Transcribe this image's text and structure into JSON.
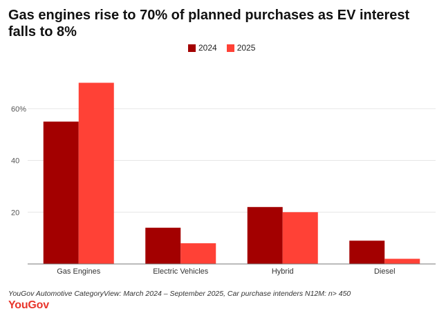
{
  "chart_data": {
    "type": "bar",
    "title": "Gas engines rise to 70% of planned purchases as EV interest falls to 8%",
    "categories": [
      "Gas Engines",
      "Electric Vehicles",
      "Hybrid",
      "Diesel"
    ],
    "series": [
      {
        "name": "2024",
        "color": "#a30000",
        "values": [
          55,
          14,
          22,
          9
        ]
      },
      {
        "name": "2025",
        "color": "#ff4136",
        "values": [
          70,
          8,
          20,
          2
        ]
      }
    ],
    "yticks": [
      20,
      40,
      60
    ],
    "ytick_labels": [
      "20",
      "40",
      "60%"
    ],
    "ylim": [
      0,
      72
    ],
    "xlabel": "",
    "ylabel": "",
    "legend": "top-center",
    "grid": true
  },
  "source": "YouGov Automotive CategoryView: March 2024 – September 2025, Car purchase intenders N12M: n> 450",
  "brand": "YouGov"
}
